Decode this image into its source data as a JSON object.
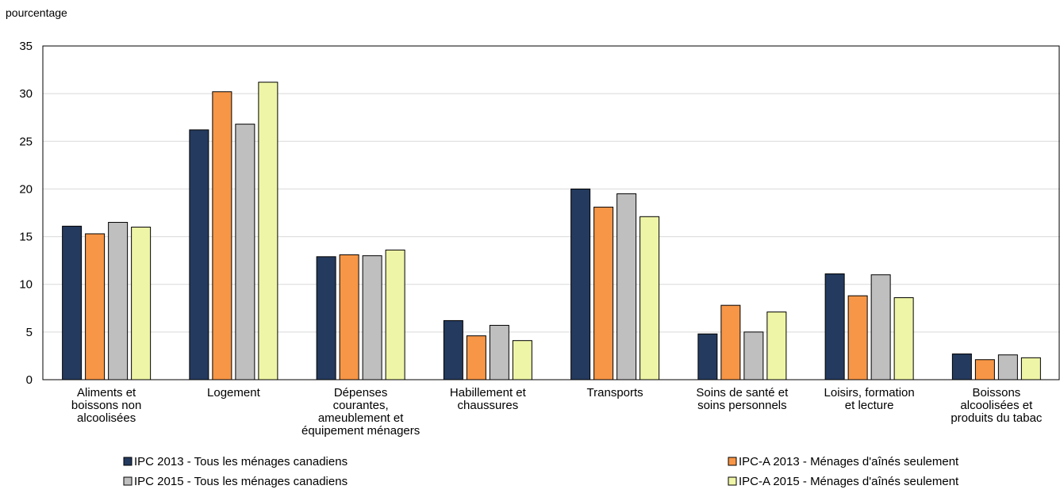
{
  "chart_data": {
    "type": "bar",
    "ylabel": "pourcentage",
    "xlabel": "",
    "ylim": [
      0,
      35
    ],
    "yticks": [
      0,
      5,
      10,
      15,
      20,
      25,
      30,
      35
    ],
    "grid": true,
    "legend_position": "bottom",
    "categories": [
      [
        "Aliments et",
        "boissons non",
        "alcoolisées"
      ],
      [
        "Logement"
      ],
      [
        "Dépenses",
        "courantes,",
        "ameublement et",
        "équipement ménagers"
      ],
      [
        "Habillement et",
        "chaussures"
      ],
      [
        "Transports"
      ],
      [
        "Soins de santé et",
        "soins personnels"
      ],
      [
        "Loisirs, formation",
        "et lecture"
      ],
      [
        "Boissons",
        "alcoolisées et",
        "produits du tabac"
      ]
    ],
    "series": [
      {
        "name": "IPC 2013",
        "name_suffix": "Tous les ménages canadiens",
        "color": "#243a5e",
        "values": [
          16.1,
          26.2,
          12.9,
          6.2,
          20.0,
          4.8,
          11.1,
          2.7
        ]
      },
      {
        "name": "IPC-A 2013",
        "name_suffix": "Ménages d'aînés seulement",
        "color": "#f79646",
        "values": [
          15.3,
          30.2,
          13.1,
          4.6,
          18.1,
          7.8,
          8.8,
          2.1
        ]
      },
      {
        "name": "IPC 2015",
        "name_suffix": "Tous les ménages canadiens",
        "color": "#bfbfbf",
        "values": [
          16.5,
          26.8,
          13.0,
          5.7,
          19.5,
          5.0,
          11.0,
          2.6
        ]
      },
      {
        "name": "IPC-A 2015",
        "name_suffix": "Ménages d'aînés seulement",
        "color": "#eef5a6",
        "values": [
          16.0,
          31.2,
          13.6,
          4.1,
          17.1,
          7.1,
          8.6,
          2.3
        ]
      }
    ],
    "legend_separator": "-"
  }
}
